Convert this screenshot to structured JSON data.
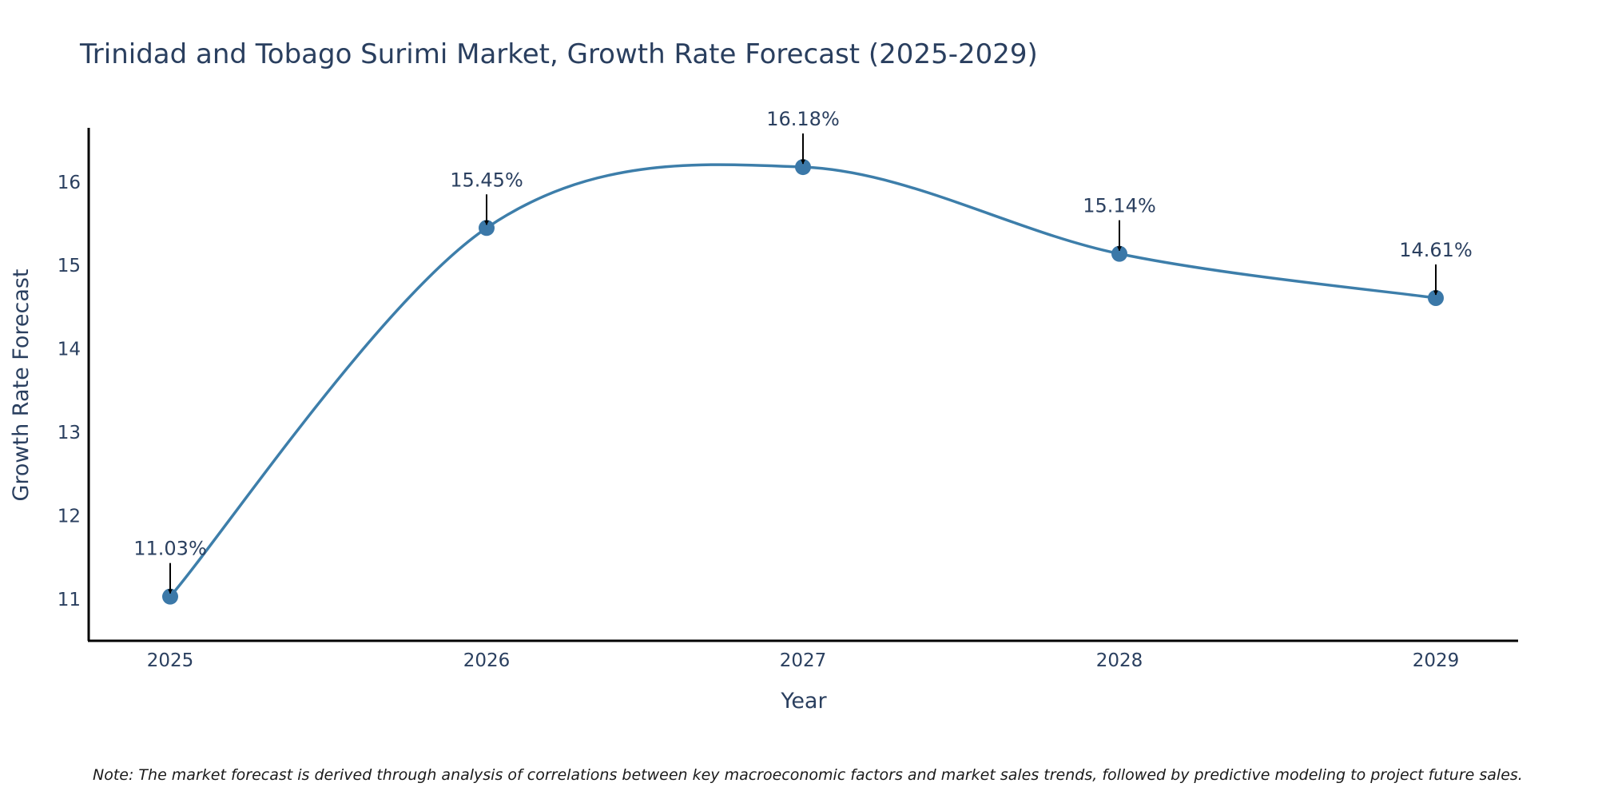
{
  "chart_data": {
    "type": "line",
    "title": "Trinidad and Tobago Surimi Market, Growth Rate Forecast (2025-2029)",
    "xlabel": "Year",
    "ylabel": "Growth Rate Forecast",
    "categories": [
      "2025",
      "2026",
      "2027",
      "2028",
      "2029"
    ],
    "series": [
      {
        "name": "Growth Rate Forecast",
        "values": [
          11.03,
          15.45,
          16.18,
          15.14,
          14.61
        ],
        "labels": [
          "11.03%",
          "15.45%",
          "16.18%",
          "15.14%",
          "14.61%"
        ]
      }
    ],
    "yticks": [
      11,
      12,
      13,
      14,
      15,
      16
    ],
    "ylim": [
      10.5,
      16.65
    ],
    "grid": false,
    "legend": "none",
    "note": "Note: The market forecast is derived through analysis of correlations between key macroeconomic factors and market sales trends, followed by predictive modeling to project future sales."
  },
  "colors": {
    "line": "#3d7eaa",
    "marker": "#3b78a8",
    "text": "#2a3f5f",
    "axis": "#000000",
    "arrow": "#000000"
  }
}
